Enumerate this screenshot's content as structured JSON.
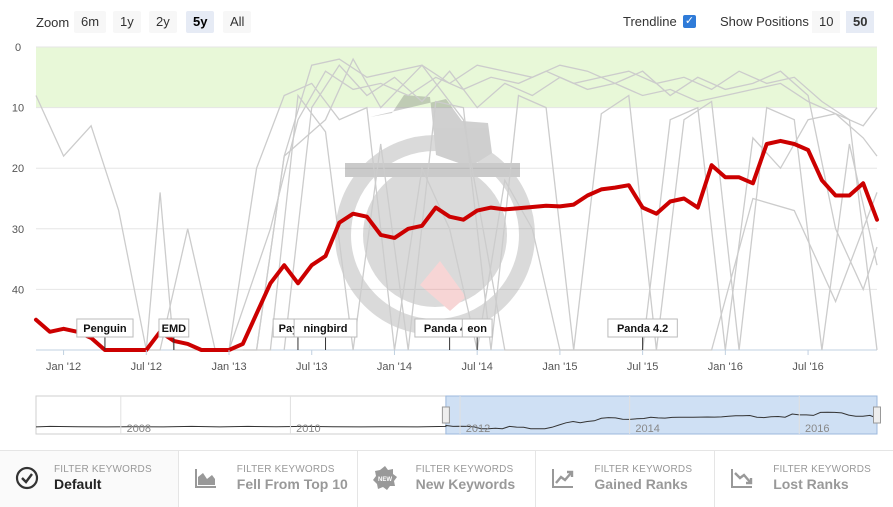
{
  "toolbar": {
    "zoom_label": "Zoom",
    "zoom_options": [
      "6m",
      "1y",
      "2y",
      "5y",
      "All"
    ],
    "zoom_selected": "5y",
    "trendline_label": "Trendline",
    "trendline_checked": true,
    "show_positions_label": "Show Positions",
    "positions_options": [
      "10",
      "50"
    ],
    "positions_selected": "50"
  },
  "colors": {
    "trend": "#cc0000",
    "keyword_lines": "#cccccc",
    "top10_band": "#e8f8d8",
    "navigator_selection": "#cfe0f4"
  },
  "chart_data": {
    "type": "line",
    "y_reversed": true,
    "ylim": [
      0,
      50
    ],
    "y_ticks": [
      "0",
      "10",
      "20",
      "30",
      "40"
    ],
    "x_ticks": [
      "Jan '12",
      "Jul '12",
      "Jan '13",
      "Jul '13",
      "Jan '14",
      "Jul '14",
      "Jan '15",
      "Jul '15",
      "Jan '16",
      "Jul '16"
    ],
    "xlim": [
      "2011-11",
      "2016-12"
    ],
    "top10_band": [
      0,
      10
    ],
    "series": [
      {
        "role": "trendline",
        "x": [
          "2011-11",
          "2011-12",
          "2012-01",
          "2012-02",
          "2012-03",
          "2012-04",
          "2012-05",
          "2012-06",
          "2012-07",
          "2012-08",
          "2012-09",
          "2012-10",
          "2012-11",
          "2012-12",
          "2013-01",
          "2013-02",
          "2013-03",
          "2013-04",
          "2013-05",
          "2013-06",
          "2013-07",
          "2013-08",
          "2013-09",
          "2013-10",
          "2013-11",
          "2013-12",
          "2014-01",
          "2014-02",
          "2014-03",
          "2014-04",
          "2014-05",
          "2014-06",
          "2014-07",
          "2014-08",
          "2014-09",
          "2014-10",
          "2014-11",
          "2014-12",
          "2015-01",
          "2015-02",
          "2015-03",
          "2015-04",
          "2015-05",
          "2015-06",
          "2015-07",
          "2015-08",
          "2015-09",
          "2015-10",
          "2015-11",
          "2015-12",
          "2016-01",
          "2016-02",
          "2016-03",
          "2016-04",
          "2016-05",
          "2016-06",
          "2016-07",
          "2016-08",
          "2016-09",
          "2016-10",
          "2016-11",
          "2016-12"
        ],
        "y": [
          45,
          47,
          46.5,
          47,
          48,
          52,
          52,
          51,
          52,
          47,
          48.5,
          49,
          52,
          55,
          56,
          49,
          44,
          39,
          36,
          39,
          36,
          34.5,
          29,
          27.5,
          28,
          31,
          31.5,
          30,
          29.5,
          26.5,
          28,
          28.5,
          27,
          26.5,
          26.8,
          26.6,
          26.4,
          26.2,
          26.3,
          26,
          24.5,
          23.5,
          23.2,
          22.8,
          26.5,
          27.5,
          25.5,
          25,
          26.5,
          19.5,
          21.5,
          21.5,
          22.5,
          16,
          15.5,
          16,
          17,
          22,
          24.5,
          24.5,
          22.5,
          28.5
        ]
      },
      {
        "role": "keyword",
        "x": [
          "2011-11",
          "2012-01",
          "2012-03",
          "2012-05",
          "2012-07",
          "2012-08",
          "2012-10",
          "2012-12",
          "2013-01",
          "2013-03",
          "2013-05",
          "2013-07",
          "2013-09",
          "2013-11",
          "2014-01",
          "2014-03",
          "2014-05",
          "2014-07",
          "2014-09",
          "2014-11",
          "2015-01",
          "2015-03",
          "2015-05",
          "2015-07",
          "2015-09",
          "2015-11",
          "2016-01",
          "2016-03",
          "2016-05",
          "2016-07",
          "2016-09",
          "2016-11",
          "2016-12"
        ],
        "y": [
          8,
          18,
          13,
          27,
          50,
          50,
          30,
          50,
          50,
          20,
          8,
          6,
          12,
          10,
          50,
          20,
          30,
          50,
          22,
          30,
          50,
          50,
          50,
          50,
          12,
          10,
          50,
          15,
          20,
          12,
          11,
          15,
          18
        ]
      },
      {
        "role": "keyword",
        "x": [
          "2012-07",
          "2012-08",
          "2012-09",
          "2012-11",
          "2013-01",
          "2013-03",
          "2013-05",
          "2013-07",
          "2013-09",
          "2013-11",
          "2014-01",
          "2014-03",
          "2014-05",
          "2014-07",
          "2014-09",
          "2014-11",
          "2015-01",
          "2015-03",
          "2015-05",
          "2015-07",
          "2015-09",
          "2015-11",
          "2016-01",
          "2016-03",
          "2016-05",
          "2016-07",
          "2016-09",
          "2016-11",
          "2016-12"
        ],
        "y": [
          50,
          24,
          50,
          50,
          50,
          50,
          18,
          3,
          2,
          5,
          4,
          3,
          6,
          3,
          4,
          5,
          3,
          4,
          6,
          8,
          7,
          9,
          8,
          7,
          6,
          9,
          11,
          13,
          10
        ]
      },
      {
        "role": "keyword",
        "x": [
          "2013-01",
          "2013-04",
          "2013-06",
          "2013-08",
          "2013-10",
          "2013-12",
          "2014-02",
          "2014-04",
          "2014-06",
          "2014-08",
          "2014-10",
          "2014-12",
          "2015-02",
          "2015-04",
          "2015-06",
          "2015-08",
          "2015-10",
          "2015-12",
          "2016-02",
          "2016-04",
          "2016-06",
          "2016-08",
          "2016-10",
          "2016-12"
        ],
        "y": [
          50,
          30,
          12,
          4,
          7,
          6,
          8,
          5,
          7,
          5,
          6,
          4,
          6,
          5,
          4,
          6,
          5,
          7,
          4,
          6,
          5,
          9,
          12,
          50
        ]
      },
      {
        "role": "keyword",
        "x": [
          "2013-02",
          "2013-04",
          "2013-06",
          "2013-08",
          "2013-10",
          "2013-12",
          "2014-02",
          "2014-04",
          "2014-06",
          "2014-08",
          "2014-10",
          "2014-12",
          "2015-02",
          "2015-04",
          "2015-06",
          "2015-08",
          "2015-10",
          "2015-12",
          "2016-02",
          "2016-04",
          "2016-06",
          "2016-08",
          "2016-10",
          "2016-12"
        ],
        "y": [
          50,
          50,
          8,
          14,
          50,
          16,
          50,
          9,
          10,
          50,
          8,
          10,
          50,
          11,
          8,
          50,
          12,
          9,
          50,
          10,
          12,
          50,
          16,
          36
        ]
      },
      {
        "role": "keyword",
        "x": [
          "2013-05",
          "2013-07",
          "2013-09",
          "2013-11",
          "2014-01",
          "2014-03",
          "2014-05",
          "2014-07",
          "2014-09",
          "2014-11",
          "2015-01",
          "2015-03",
          "2015-05",
          "2015-07",
          "2015-09",
          "2015-11",
          "2016-01",
          "2016-03",
          "2016-05",
          "2016-07",
          "2016-09",
          "2016-11",
          "2016-12"
        ],
        "y": [
          50,
          10,
          3,
          8,
          5,
          9,
          4,
          10,
          6,
          8,
          5,
          7,
          6,
          4,
          8,
          5,
          7,
          6,
          4,
          8,
          30,
          40,
          33
        ]
      },
      {
        "role": "keyword",
        "x": [
          "2013-03",
          "2013-05",
          "2013-08",
          "2013-10",
          "2013-12",
          "2014-03",
          "2014-06",
          "2014-09",
          "2014-12",
          "2015-03",
          "2015-06",
          "2015-09",
          "2015-12",
          "2016-03",
          "2016-06",
          "2016-09",
          "2016-12"
        ],
        "y": [
          50,
          18,
          12,
          2,
          10,
          3,
          12,
          50,
          50,
          50,
          50,
          50,
          50,
          25,
          27,
          42,
          24
        ]
      }
    ],
    "annotations": [
      {
        "label": "Penguin",
        "x": "2012-04"
      },
      {
        "label": "EMD",
        "x": "2012-09"
      },
      {
        "label": "Payday",
        "x": "2013-06"
      },
      {
        "label": "ningbird",
        "x": "2013-08"
      },
      {
        "label": "Panda 4.0",
        "x": "2014-05"
      },
      {
        "label": "eon",
        "x": "2014-07"
      },
      {
        "label": "Panda 4.2",
        "x": "2015-07"
      }
    ],
    "navigator": {
      "ticks": [
        "2008",
        "2010",
        "2012",
        "2014",
        "2016"
      ],
      "range": [
        "2007-01",
        "2016-12"
      ],
      "selected": [
        "2011-11",
        "2016-12"
      ]
    }
  },
  "filters": [
    {
      "small": "FILTER KEYWORDS",
      "big": "Default",
      "icon": "check-circle-icon",
      "active": true
    },
    {
      "small": "FILTER KEYWORDS",
      "big": "Fell From Top 10",
      "icon": "area-chart-icon",
      "active": false
    },
    {
      "small": "FILTER KEYWORDS",
      "big": "New Keywords",
      "icon": "new-badge-icon",
      "active": false
    },
    {
      "small": "FILTER KEYWORDS",
      "big": "Gained Ranks",
      "icon": "trend-up-icon",
      "active": false
    },
    {
      "small": "FILTER KEYWORDS",
      "big": "Lost Ranks",
      "icon": "trend-down-icon",
      "active": false
    }
  ]
}
